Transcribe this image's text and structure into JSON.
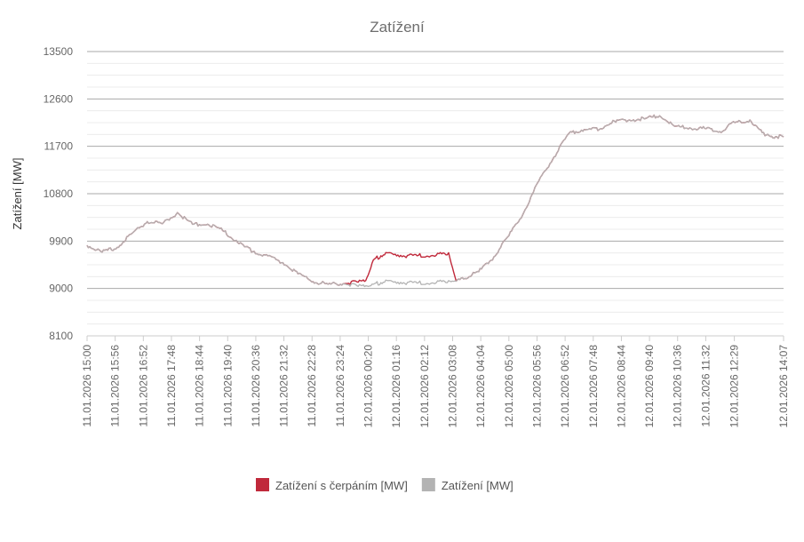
{
  "chart_data": {
    "type": "line",
    "title": "Zatížení",
    "ylabel": "Zatížení [MW]",
    "xlabel": "",
    "ylim": [
      8100,
      13500
    ],
    "yticks": [
      8100,
      9000,
      9900,
      10800,
      11700,
      12600,
      13500
    ],
    "x_tick_labels": [
      "11.01.2026 15:00",
      "11.01.2026 15:56",
      "11.01.2026 16:52",
      "11.01.2026 17:48",
      "11.01.2026 18:44",
      "11.01.2026 19:40",
      "11.01.2026 20:36",
      "11.01.2026 21:32",
      "11.01.2026 22:28",
      "11.01.2026 23:24",
      "12.01.2026 00:20",
      "12.01.2026 01:16",
      "12.01.2026 02:12",
      "12.01.2026 03:08",
      "12.01.2026 04:04",
      "12.01.2026 05:00",
      "12.01.2026 05:56",
      "12.01.2026 06:52",
      "12.01.2026 07:48",
      "12.01.2026 08:44",
      "12.01.2026 09:40",
      "12.01.2026 10:36",
      "12.01.2026 11:32",
      "12.01.2026 12:29",
      "12.01.2026 14:07"
    ],
    "grid": true,
    "legend_position": "bottom",
    "series": [
      {
        "name": "Zatížení s čerpáním [MW]",
        "color": "#c0293b",
        "x": [
          "11.01.2026 15:00",
          "11.01.2026 15:30",
          "11.01.2026 16:00",
          "11.01.2026 16:30",
          "11.01.2026 17:00",
          "11.01.2026 17:30",
          "11.01.2026 18:00",
          "11.01.2026 18:30",
          "11.01.2026 19:00",
          "11.01.2026 19:30",
          "11.01.2026 20:00",
          "11.01.2026 20:30",
          "11.01.2026 21:00",
          "11.01.2026 21:30",
          "11.01.2026 22:00",
          "11.01.2026 22:30",
          "11.01.2026 23:00",
          "11.01.2026 23:30",
          "12.01.2026 00:00",
          "12.01.2026 00:15",
          "12.01.2026 00:30",
          "12.01.2026 00:45",
          "12.01.2026 01:00",
          "12.01.2026 01:30",
          "12.01.2026 02:00",
          "12.01.2026 02:30",
          "12.01.2026 03:00",
          "12.01.2026 03:15",
          "12.01.2026 03:30",
          "12.01.2026 04:00",
          "12.01.2026 04:30",
          "12.01.2026 05:00",
          "12.01.2026 05:30",
          "12.01.2026 06:00",
          "12.01.2026 06:30",
          "12.01.2026 07:00",
          "12.01.2026 07:30",
          "12.01.2026 08:00",
          "12.01.2026 08:30",
          "12.01.2026 09:00",
          "12.01.2026 09:30",
          "12.01.2026 10:00",
          "12.01.2026 10:30",
          "12.01.2026 11:00",
          "12.01.2026 11:30",
          "12.01.2026 12:00",
          "12.01.2026 12:30",
          "12.01.2026 13:00",
          "12.01.2026 13:30",
          "12.01.2026 14:07"
        ],
        "values": [
          9820,
          9690,
          9780,
          10050,
          10270,
          10230,
          10440,
          10220,
          10220,
          10100,
          9870,
          9700,
          9620,
          9490,
          9280,
          9130,
          9080,
          9090,
          9120,
          9150,
          9540,
          9620,
          9680,
          9620,
          9630,
          9620,
          9680,
          9140,
          9180,
          9320,
          9600,
          10000,
          10450,
          11050,
          11500,
          11950,
          12020,
          12020,
          12180,
          12200,
          12220,
          12280,
          12080,
          12050,
          12040,
          11980,
          12150,
          12200,
          11900,
          11880
        ]
      },
      {
        "name": "Zatížení [MW]",
        "color": "#b3b3b3",
        "x": [
          "11.01.2026 15:00",
          "11.01.2026 15:30",
          "11.01.2026 16:00",
          "11.01.2026 16:30",
          "11.01.2026 17:00",
          "11.01.2026 17:30",
          "11.01.2026 18:00",
          "11.01.2026 18:30",
          "11.01.2026 19:00",
          "11.01.2026 19:30",
          "11.01.2026 20:00",
          "11.01.2026 20:30",
          "11.01.2026 21:00",
          "11.01.2026 21:30",
          "11.01.2026 22:00",
          "11.01.2026 22:30",
          "11.01.2026 23:00",
          "11.01.2026 23:30",
          "12.01.2026 00:00",
          "12.01.2026 00:15",
          "12.01.2026 00:30",
          "12.01.2026 00:45",
          "12.01.2026 01:00",
          "12.01.2026 01:30",
          "12.01.2026 02:00",
          "12.01.2026 02:30",
          "12.01.2026 03:00",
          "12.01.2026 03:15",
          "12.01.2026 03:30",
          "12.01.2026 04:00",
          "12.01.2026 04:30",
          "12.01.2026 05:00",
          "12.01.2026 05:30",
          "12.01.2026 06:00",
          "12.01.2026 06:30",
          "12.01.2026 07:00",
          "12.01.2026 07:30",
          "12.01.2026 08:00",
          "12.01.2026 08:30",
          "12.01.2026 09:00",
          "12.01.2026 09:30",
          "12.01.2026 10:00",
          "12.01.2026 10:30",
          "12.01.2026 11:00",
          "12.01.2026 11:30",
          "12.01.2026 12:00",
          "12.01.2026 12:30",
          "12.01.2026 13:00",
          "12.01.2026 13:30",
          "12.01.2026 14:07"
        ],
        "values": [
          9820,
          9690,
          9780,
          10050,
          10270,
          10230,
          10440,
          10220,
          10220,
          10100,
          9870,
          9700,
          9620,
          9490,
          9280,
          9130,
          9080,
          9090,
          9040,
          9050,
          9080,
          9110,
          9150,
          9110,
          9110,
          9100,
          9150,
          9140,
          9180,
          9320,
          9600,
          10000,
          10450,
          11050,
          11500,
          11950,
          12020,
          12020,
          12180,
          12200,
          12220,
          12280,
          12080,
          12050,
          12040,
          11980,
          12150,
          12200,
          11900,
          11880
        ]
      }
    ]
  }
}
